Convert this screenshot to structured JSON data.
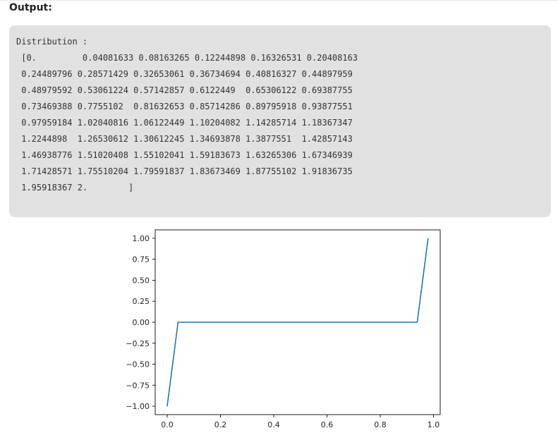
{
  "output_label": "Output:",
  "code_output": {
    "lines": [
      "Distribution :",
      " [0.         0.04081633 0.08163265 0.12244898 0.16326531 0.20408163",
      " 0.24489796 0.28571429 0.32653061 0.36734694 0.40816327 0.44897959",
      " 0.48979592 0.53061224 0.57142857 0.6122449  0.65306122 0.69387755",
      " 0.73469388 0.7755102  0.81632653 0.85714286 0.89795918 0.93877551",
      " 0.97959184 1.02040816 1.06122449 1.10204082 1.14285714 1.18367347",
      " 1.2244898  1.26530612 1.30612245 1.34693878 1.3877551  1.42857143",
      " 1.46938776 1.51020408 1.55102041 1.59183673 1.63265306 1.67346939",
      " 1.71428571 1.75510204 1.79591837 1.83673469 1.87755102 1.91836735",
      " 1.95918367 2.        ]"
    ]
  },
  "chart_data": {
    "type": "line",
    "title": "",
    "xlabel": "",
    "ylabel": "",
    "xlim": [
      -0.045,
      1.025
    ],
    "ylim": [
      -1.1,
      1.1
    ],
    "xticks": [
      0.0,
      0.2,
      0.4,
      0.6,
      0.8,
      1.0
    ],
    "xtick_labels": [
      "0.0",
      "0.2",
      "0.4",
      "0.6",
      "0.8",
      "1.0"
    ],
    "yticks": [
      1.0,
      0.75,
      0.5,
      0.25,
      0.0,
      -0.25,
      -0.5,
      -0.75,
      -1.0
    ],
    "ytick_labels": [
      "1.00",
      "0.75",
      "0.50",
      "0.25",
      "0.00",
      "−0.25",
      "−0.50",
      "−0.75",
      "−1.00"
    ],
    "grid": false,
    "series": [
      {
        "color": "#1f77b4",
        "x": [
          0.0,
          0.0408,
          0.0816,
          0.1224,
          0.1633,
          0.2041,
          0.2449,
          0.2857,
          0.3265,
          0.3673,
          0.4082,
          0.449,
          0.4898,
          0.5306,
          0.5714,
          0.6122,
          0.6531,
          0.6939,
          0.7347,
          0.7755,
          0.8163,
          0.8571,
          0.898,
          0.9388,
          0.9796
        ],
        "values": [
          -1,
          0,
          0,
          0,
          0,
          0,
          0,
          0,
          0,
          0,
          0,
          0,
          0,
          0,
          0,
          0,
          0,
          0,
          0,
          0,
          0,
          0,
          0,
          0,
          1
        ]
      }
    ]
  }
}
